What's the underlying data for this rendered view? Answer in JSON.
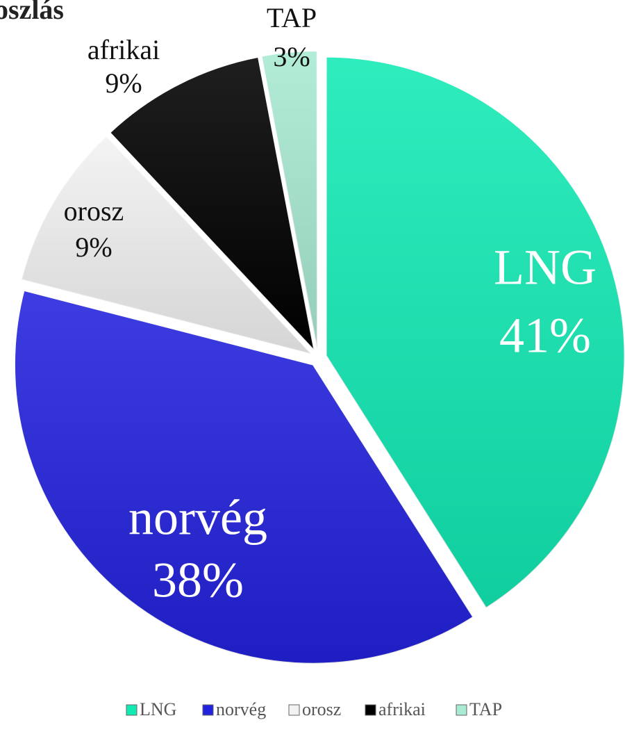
{
  "chart_data": {
    "type": "pie",
    "title": "oszlás",
    "categories": [
      "LNG",
      "norvég",
      "orosz",
      "afrikai",
      "TAP"
    ],
    "values": [
      41,
      38,
      9,
      9,
      3
    ],
    "value_labels": [
      "41%",
      "38%",
      "9%",
      "9%",
      "3%"
    ],
    "colors": [
      "#12eab4",
      "#2222dd",
      "#f2f2f2",
      "#000000",
      "#a8ead2"
    ],
    "legend": "bottom"
  }
}
